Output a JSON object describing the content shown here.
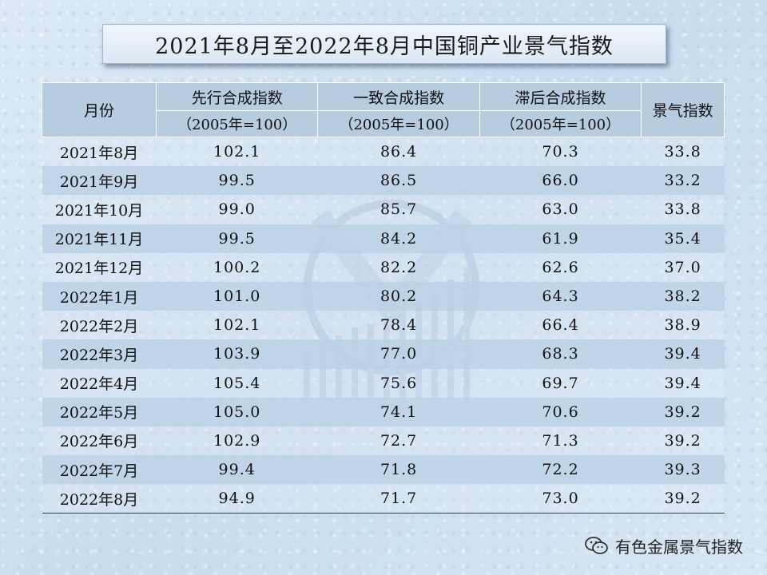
{
  "title": "2021年8月至2022年8月中国铜产业景气指数",
  "columns": {
    "month": "月份",
    "leading": "先行合成指数",
    "coincident": "一致合成指数",
    "lagging": "滞后合成指数",
    "base": "（2005年=100）",
    "prosperity": "景气指数"
  },
  "rows": [
    {
      "month": "2021年8月",
      "leading": "102.1",
      "coincident": "86.4",
      "lagging": "70.3",
      "prosperity": "33.8"
    },
    {
      "month": "2021年9月",
      "leading": "99.5",
      "coincident": "86.5",
      "lagging": "66.0",
      "prosperity": "33.2"
    },
    {
      "month": "2021年10月",
      "leading": "99.0",
      "coincident": "85.7",
      "lagging": "63.0",
      "prosperity": "33.8"
    },
    {
      "month": "2021年11月",
      "leading": "99.5",
      "coincident": "84.2",
      "lagging": "61.9",
      "prosperity": "35.4"
    },
    {
      "month": "2021年12月",
      "leading": "100.2",
      "coincident": "82.2",
      "lagging": "62.6",
      "prosperity": "37.0"
    },
    {
      "month": "2022年1月",
      "leading": "101.0",
      "coincident": "80.2",
      "lagging": "64.3",
      "prosperity": "38.2"
    },
    {
      "month": "2022年2月",
      "leading": "102.1",
      "coincident": "78.4",
      "lagging": "66.4",
      "prosperity": "38.9"
    },
    {
      "month": "2022年3月",
      "leading": "103.9",
      "coincident": "77.0",
      "lagging": "68.3",
      "prosperity": "39.4"
    },
    {
      "month": "2022年4月",
      "leading": "105.4",
      "coincident": "75.6",
      "lagging": "69.7",
      "prosperity": "39.4"
    },
    {
      "month": "2022年5月",
      "leading": "105.0",
      "coincident": "74.1",
      "lagging": "70.6",
      "prosperity": "39.2"
    },
    {
      "month": "2022年6月",
      "leading": "102.9",
      "coincident": "72.7",
      "lagging": "71.3",
      "prosperity": "39.2"
    },
    {
      "month": "2022年7月",
      "leading": "99.4",
      "coincident": "71.8",
      "lagging": "72.2",
      "prosperity": "39.3"
    },
    {
      "month": "2022年8月",
      "leading": "94.9",
      "coincident": "71.7",
      "lagging": "73.0",
      "prosperity": "39.2"
    }
  ],
  "footer": {
    "icon": "wechat-icon",
    "text": "有色金属景气指数"
  }
}
